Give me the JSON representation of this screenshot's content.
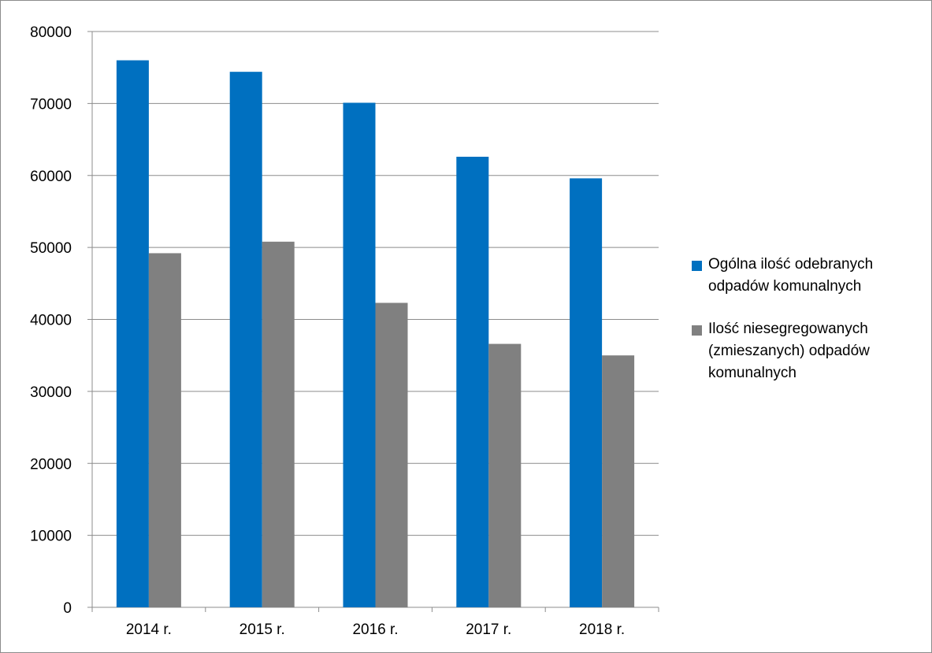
{
  "chart_data": {
    "type": "bar",
    "categories": [
      "2014 r.",
      "2015 r.",
      "2016 r.",
      "2017 r.",
      "2018 r."
    ],
    "series": [
      {
        "name": "Ogólna ilość odebranych odpadów komunalnych",
        "color": "#0070c0",
        "values": [
          76000,
          74400,
          70100,
          62600,
          59600
        ]
      },
      {
        "name": "Ilość niesegregowanych (zmieszanych) odpadów komunalnych",
        "color": "#808080",
        "values": [
          49200,
          50800,
          42300,
          36600,
          35000
        ]
      }
    ],
    "ylim": [
      0,
      80000
    ],
    "yticks": [
      "0",
      "10000",
      "20000",
      "30000",
      "40000",
      "50000",
      "60000",
      "70000",
      "80000"
    ],
    "grid": true,
    "legend_position": "right"
  }
}
